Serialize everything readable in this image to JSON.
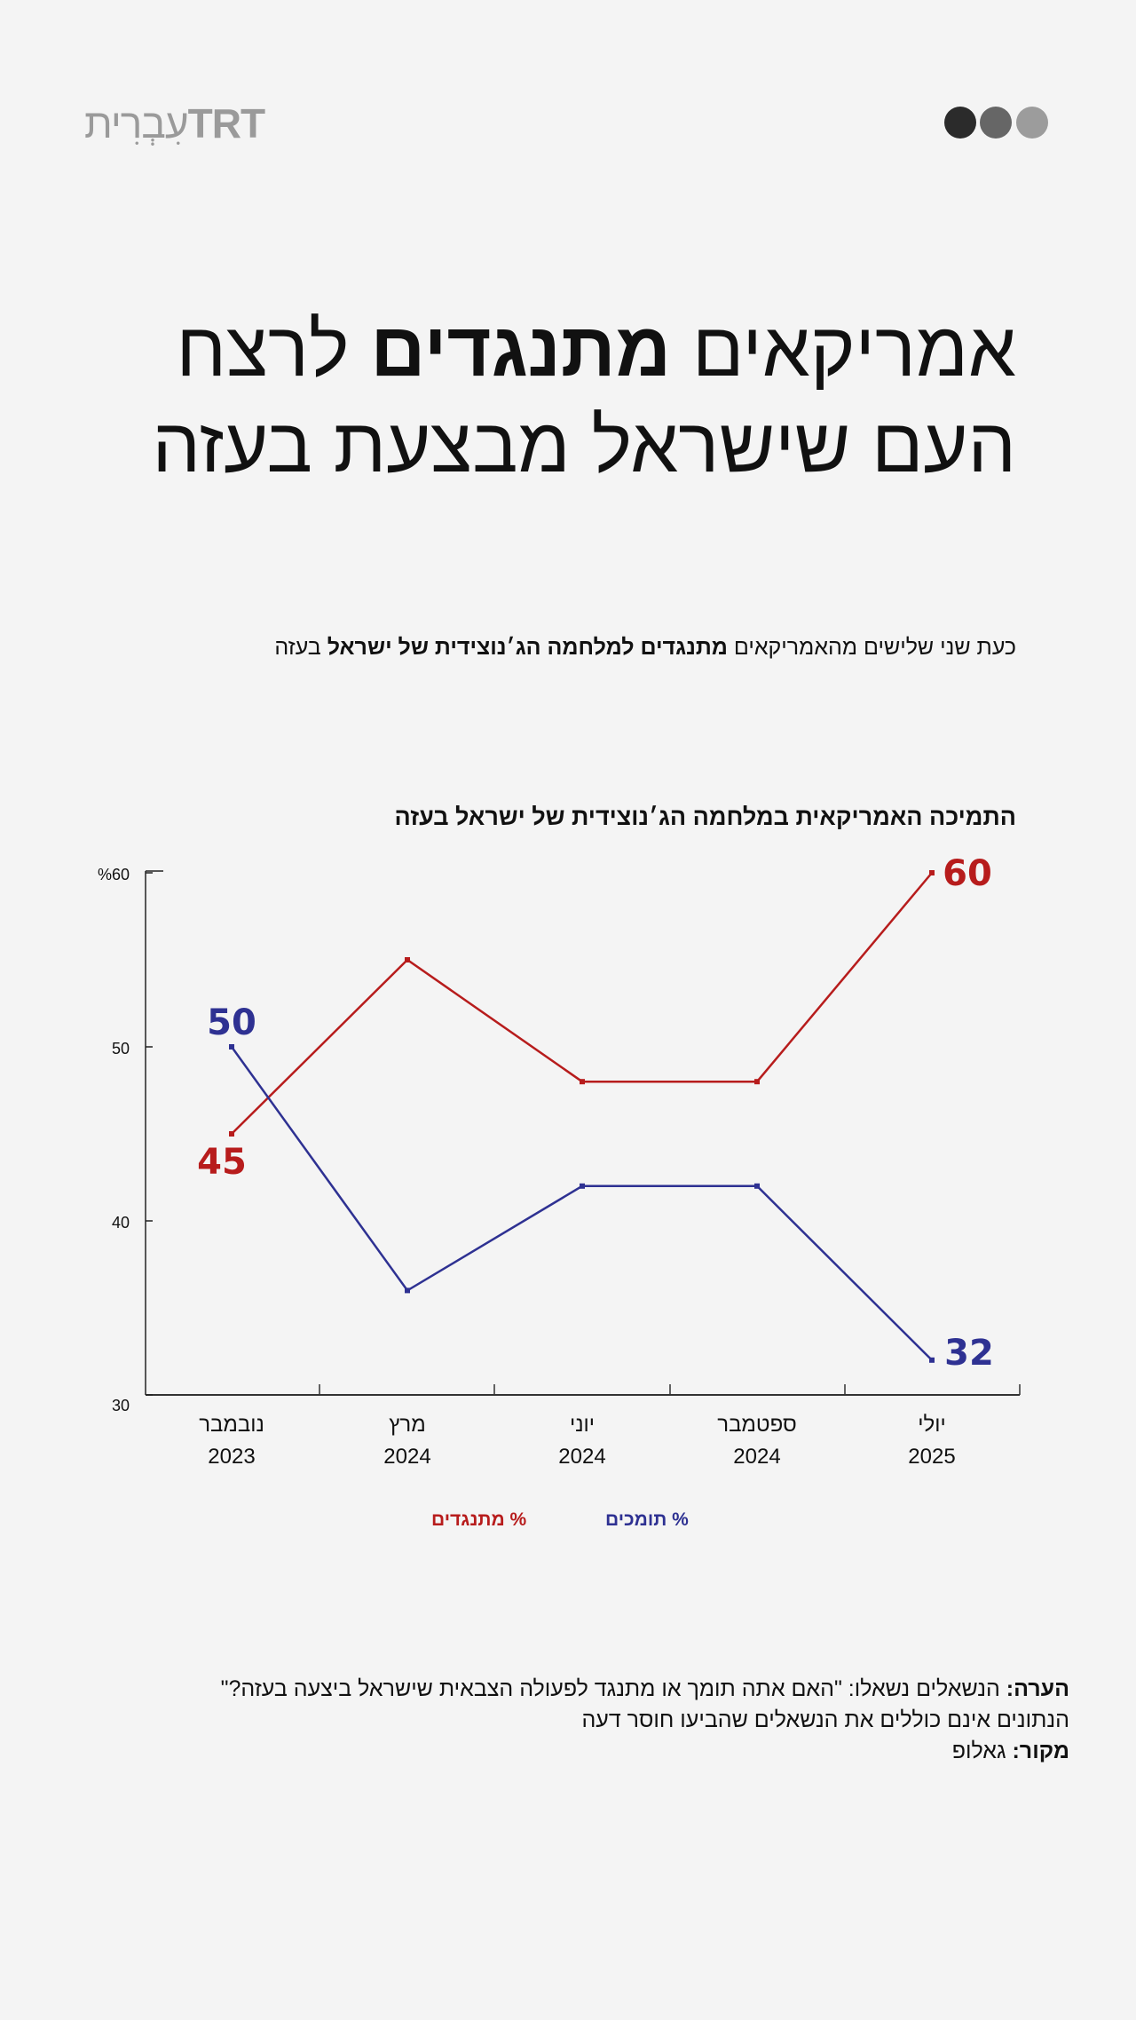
{
  "logo": {
    "brand": "TRT",
    "language": "עִבְרִית"
  },
  "window_dots": [
    "#2b2b2b",
    "#666666",
    "#9c9c9c"
  ],
  "header": {
    "title_part1": "אמריקאים ",
    "title_bold": "מתנגדים",
    "title_part2": " לרצח העם שישראל מבצעת בעזה"
  },
  "subtitle": {
    "part1": "כעת שני שלישים מהאמריקאים ",
    "bold": "מתנגדים למלחמה הג׳נוצידית של ישראל",
    "part2": " בעזה"
  },
  "colors": {
    "opposed": "#b71c1c",
    "support": "#2e3192"
  },
  "chart_data": {
    "type": "line",
    "title": "התמיכה האמריקאית במלחמה הג׳נוצידית של ישראל בעזה",
    "categories": [
      {
        "month": "נובמבר",
        "year": "2023"
      },
      {
        "month": "מרץ",
        "year": "2024"
      },
      {
        "month": "יוני",
        "year": "2024"
      },
      {
        "month": "ספטמבר",
        "year": "2024"
      },
      {
        "month": "יולי",
        "year": "2025"
      }
    ],
    "series": [
      {
        "name": "% מתנגדים",
        "values": [
          45,
          55,
          48,
          48,
          60
        ],
        "labels": {
          "0": "45",
          "4": "60"
        }
      },
      {
        "name": "% תומכים",
        "values": [
          50,
          36,
          42,
          42,
          32
        ],
        "labels": {
          "0": "50",
          "4": "32"
        }
      }
    ],
    "yticks": [
      "%60",
      "50",
      "40",
      "30"
    ],
    "ytick_values": [
      60,
      50,
      40,
      30
    ],
    "ylim": [
      30,
      60
    ],
    "legend": "bottom-center",
    "grid": false
  },
  "notes": {
    "note_label": "הערה:",
    "note_text": " הנשאלים נשאלו: \"האם אתה תומך או מתנגד לפעולה הצבאית שישראל ביצעה בעזה?\"",
    "note_line2": "הנתונים אינם כוללים את הנשאלים שהביעו חוסר דעה",
    "source_label": "מקור:",
    "source_text": " גאלופ"
  }
}
